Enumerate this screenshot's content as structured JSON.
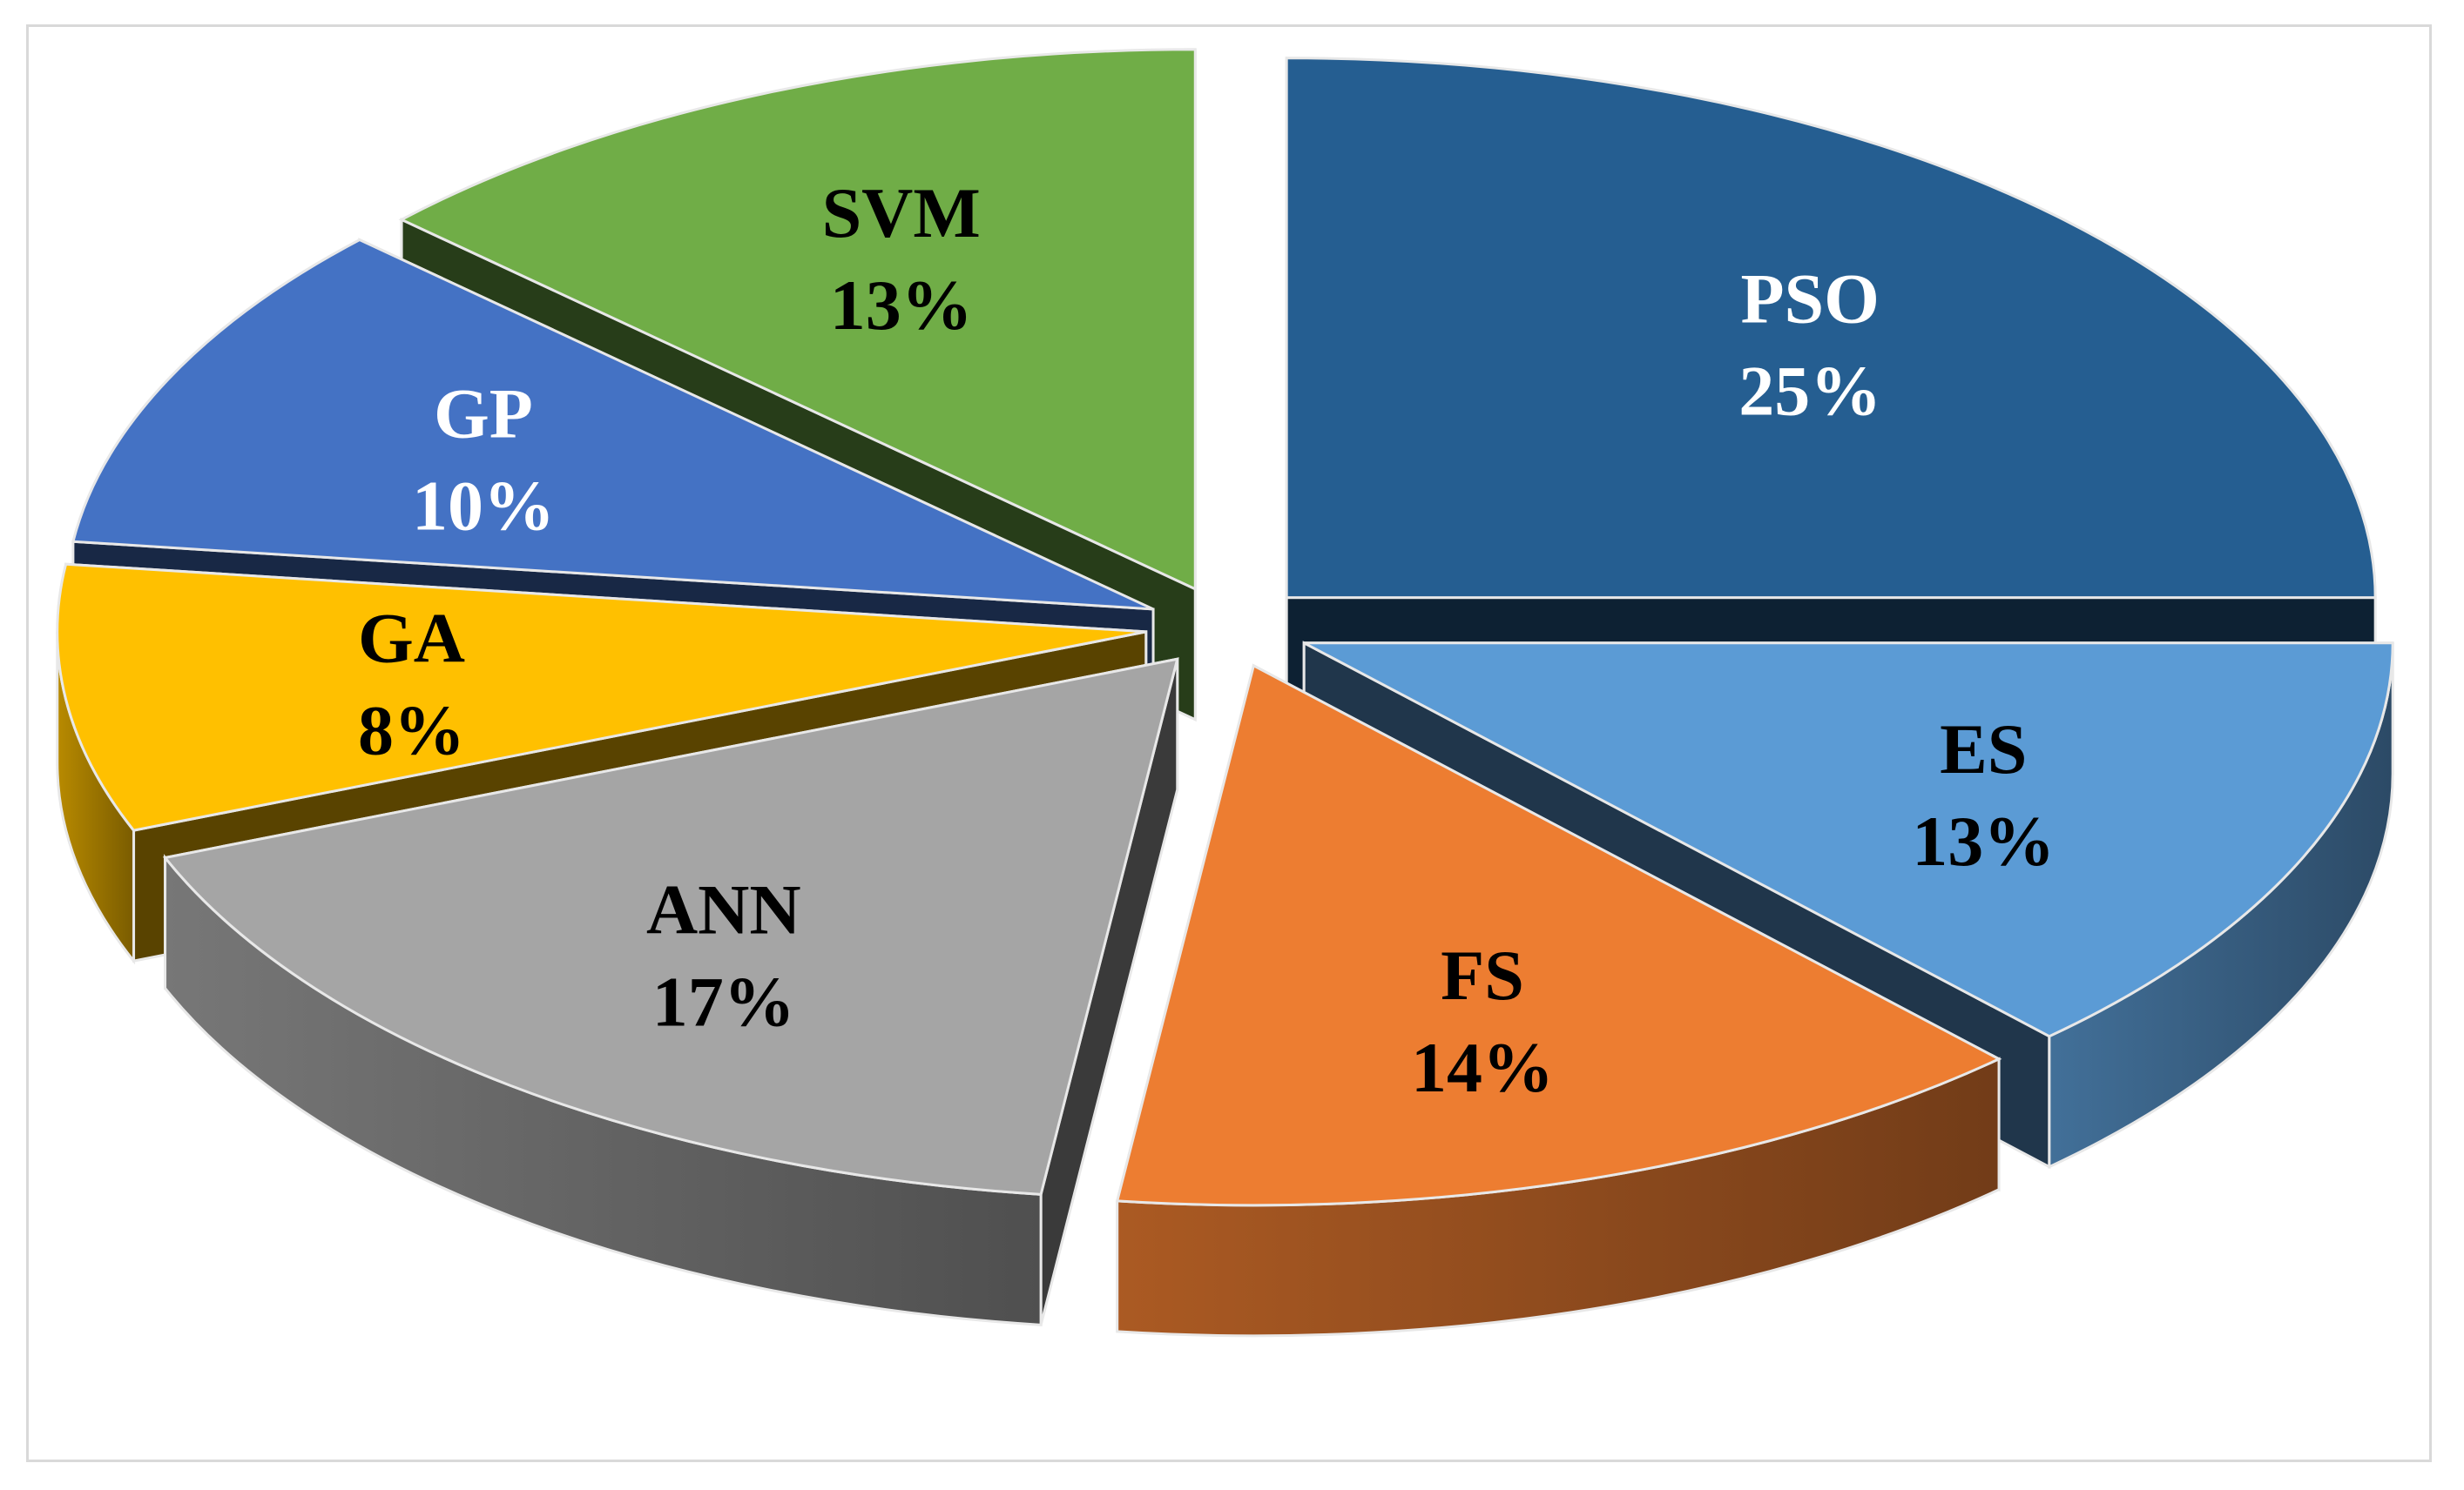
{
  "chart_data": {
    "type": "pie",
    "title": "",
    "style": "3d-exploded",
    "slices": [
      {
        "label": "PSO",
        "value": 25,
        "display": "25%",
        "color": "#255e91",
        "label_color": "#ffffff"
      },
      {
        "label": "ES",
        "value": 13,
        "display": "13%",
        "color": "#5b9bd5",
        "label_color": "#000000"
      },
      {
        "label": "FS",
        "value": 14,
        "display": "14%",
        "color": "#ed7d31",
        "label_color": "#000000"
      },
      {
        "label": "ANN",
        "value": 17,
        "display": "17%",
        "color": "#a5a5a5",
        "label_color": "#000000"
      },
      {
        "label": "GA",
        "value": 8,
        "display": "8%",
        "color": "#ffc000",
        "label_color": "#000000"
      },
      {
        "label": "GP",
        "value": 10,
        "display": "10%",
        "color": "#4472c4",
        "label_color": "#ffffff"
      },
      {
        "label": "SVM",
        "value": 13,
        "display": "13%",
        "color": "#70ad47",
        "label_color": "#000000"
      }
    ]
  }
}
